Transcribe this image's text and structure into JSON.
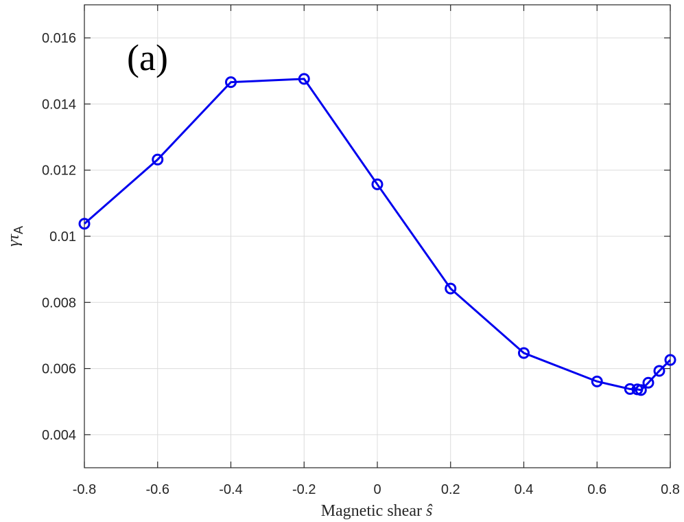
{
  "chart_data": {
    "type": "line",
    "panel_label": "(a)",
    "xlabel": "Magnetic shear",
    "xlabel_symbol": "ŝ",
    "ylabel": "γ",
    "ylabel_sub": "τ",
    "ylabel_subsub": "A",
    "xlim": [
      -0.8,
      0.8
    ],
    "ylim": [
      0.003,
      0.017
    ],
    "xticks": [
      -0.8,
      -0.6,
      -0.4,
      -0.2,
      0,
      0.2,
      0.4,
      0.6,
      0.8
    ],
    "xtick_labels": [
      "-0.8",
      "-0.6",
      "-0.4",
      "-0.2",
      "0",
      "0.2",
      "0.4",
      "0.6",
      "0.8"
    ],
    "yticks": [
      0.004,
      0.006,
      0.008,
      0.01,
      0.012,
      0.014,
      0.016
    ],
    "ytick_labels": [
      "0.004",
      "0.006",
      "0.008",
      "0.01",
      "0.012",
      "0.014",
      "0.016"
    ],
    "grid": true,
    "series": [
      {
        "color": "#0000ee",
        "marker": "circle",
        "x": [
          -0.8,
          -0.6,
          -0.4,
          -0.2,
          0,
          0.2,
          0.4,
          0.6,
          0.69,
          0.71,
          0.72,
          0.74,
          0.77,
          0.8
        ],
        "y": [
          0.01038,
          0.01232,
          0.01466,
          0.01476,
          0.01157,
          0.00842,
          0.00647,
          0.00561,
          0.00538,
          0.00537,
          0.00535,
          0.00557,
          0.00593,
          0.00626
        ]
      }
    ]
  }
}
